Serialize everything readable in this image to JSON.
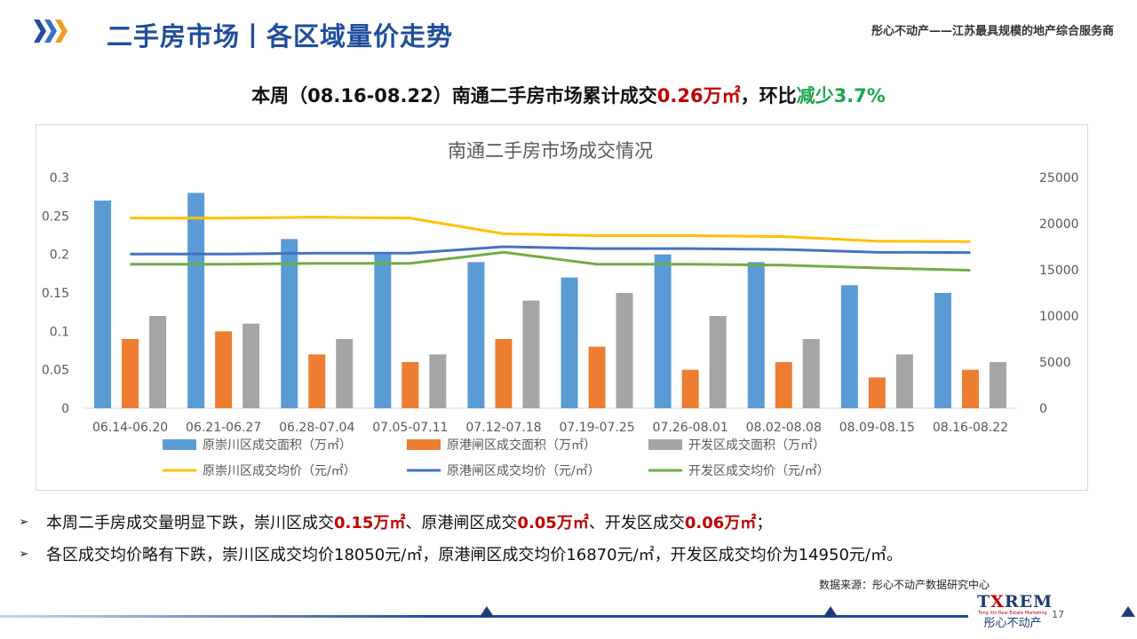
{
  "header": {
    "title": "二手房市场丨各区域量价走势",
    "tagline": "彤心不动产——江苏最具规模的地产综合服务商"
  },
  "headline": {
    "part1": "本周（08.16-08.22）南通二手房市场累计成交",
    "volume": "0.26万㎡",
    "part2": "，环比",
    "change": "减少3.7%"
  },
  "chart_data": {
    "type": "bar",
    "title": "南通二手房市场成交情况",
    "categories": [
      "06.14-06.20",
      "06.21-06.27",
      "06.28-07.04",
      "07.05-07.11",
      "07.12-07.18",
      "07.19-07.25",
      "07.26-08.01",
      "08.02-08.08",
      "08.09-08.15",
      "08.16-08.22"
    ],
    "ylim": [
      0,
      0.3
    ],
    "yticks": [
      "0",
      "0.05",
      "0.1",
      "0.15",
      "0.2",
      "0.25",
      "0.3"
    ],
    "y2lim": [
      0,
      25000
    ],
    "y2ticks": [
      "0",
      "5000",
      "10000",
      "15000",
      "20000",
      "25000"
    ],
    "grid": false,
    "legend_position": "bottom",
    "bar_series": [
      {
        "name": "原崇川区成交面积（万㎡）",
        "color": "#5b9bd5",
        "values": [
          0.27,
          0.28,
          0.22,
          0.2,
          0.19,
          0.17,
          0.2,
          0.19,
          0.16,
          0.15
        ]
      },
      {
        "name": "原港闸区成交面积（万㎡）",
        "color": "#ed7d31",
        "values": [
          0.09,
          0.1,
          0.07,
          0.06,
          0.09,
          0.08,
          0.05,
          0.06,
          0.04,
          0.05
        ]
      },
      {
        "name": "开发区成交面积（万㎡）",
        "color": "#a5a5a5",
        "values": [
          0.12,
          0.11,
          0.09,
          0.07,
          0.14,
          0.15,
          0.12,
          0.09,
          0.07,
          0.06
        ]
      }
    ],
    "line_series": [
      {
        "name": "原崇川区成交均价（元/㎡）",
        "color": "#ffc000",
        "values": [
          20600,
          20600,
          20700,
          20600,
          18900,
          18700,
          18700,
          18600,
          18100,
          18050
        ]
      },
      {
        "name": "原港闸区成交均价（元/㎡）",
        "color": "#4472c4",
        "values": [
          16700,
          16700,
          16800,
          16800,
          17500,
          17300,
          17300,
          17200,
          16900,
          16870
        ]
      },
      {
        "name": "开发区成交均价（元/㎡）",
        "color": "#70ad47",
        "values": [
          15600,
          15600,
          15700,
          15700,
          16900,
          15600,
          15600,
          15500,
          15200,
          14950
        ]
      }
    ]
  },
  "bullets": [
    {
      "arrow": "➢",
      "t1": "本周二手房成交量明显下跌，崇川区成交",
      "b1": "0.15万㎡",
      "t2": "、原港闸区成交",
      "b2": "0.05万㎡",
      "t3": "、开发区成交",
      "b3": "0.06万㎡",
      "t4": "；"
    },
    {
      "arrow": "➢",
      "text": "各区成交均价略有下跌，崇川区成交均价18050元/㎡，原港闸区成交均价16870元/㎡，开发区成交均价为14950元/㎡。"
    }
  ],
  "footer": {
    "source": "数据来源：彤心不动产数据研究中心",
    "brand_en_1": "T",
    "brand_en_x": "X",
    "brand_en_2": "REM",
    "brand_sub": "Tong Xin Real Estate Marketing",
    "brand_cn": "彤心不动产",
    "page": "17"
  }
}
